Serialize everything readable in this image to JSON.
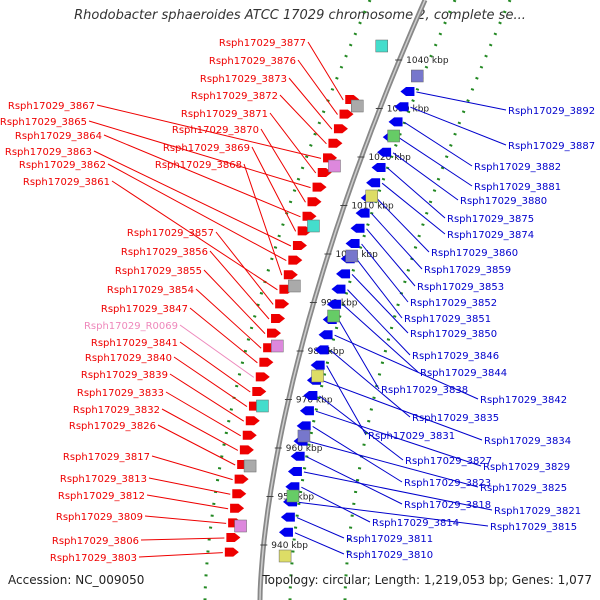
{
  "title": "Rhodobacter sphaeroides ATCC 17029 chromosome 2, complete se...",
  "footer": {
    "accession": "Accession: NC_009050",
    "summary": "Topology: circular; Length: 1,219,053 bp; Genes: 1,077"
  },
  "colors": {
    "left_label": "#ee0000",
    "right_label": "#0000cc",
    "rna_label": "#ee88bb",
    "forward_gene": "#ee0000",
    "reverse_gene": "#0000ee",
    "backbone": "#888888",
    "dots": "#228822"
  },
  "kbp_ticks": [
    "940 kbp",
    "950 kbp",
    "960 kbp",
    "970 kbp",
    "980 kbp",
    "990 kbp",
    "1000 kbp",
    "1010 kbp",
    "1020 kbp",
    "1030 kbp",
    "1040 kbp"
  ],
  "left_labels": [
    {
      "name": "Rsph17029_3877",
      "kind": "gene"
    },
    {
      "name": "Rsph17029_3876",
      "kind": "gene"
    },
    {
      "name": "Rsph17029_3873",
      "kind": "gene"
    },
    {
      "name": "Rsph17029_3872",
      "kind": "gene"
    },
    {
      "name": "Rsph17029_3867",
      "kind": "gene"
    },
    {
      "name": "Rsph17029_3871",
      "kind": "gene"
    },
    {
      "name": "Rsph17029_3865",
      "kind": "gene"
    },
    {
      "name": "Rsph17029_3870",
      "kind": "gene"
    },
    {
      "name": "Rsph17029_3864",
      "kind": "gene"
    },
    {
      "name": "Rsph17029_3869",
      "kind": "gene"
    },
    {
      "name": "Rsph17029_3863",
      "kind": "gene"
    },
    {
      "name": "Rsph17029_3862",
      "kind": "gene"
    },
    {
      "name": "Rsph17029_3868",
      "kind": "gene"
    },
    {
      "name": "Rsph17029_3861",
      "kind": "gene"
    },
    {
      "name": "Rsph17029_3857",
      "kind": "gene"
    },
    {
      "name": "Rsph17029_3856",
      "kind": "gene"
    },
    {
      "name": "Rsph17029_3855",
      "kind": "gene"
    },
    {
      "name": "Rsph17029_3854",
      "kind": "gene"
    },
    {
      "name": "Rsph17029_3847",
      "kind": "gene"
    },
    {
      "name": "Rsph17029_R0069",
      "kind": "rna"
    },
    {
      "name": "Rsph17029_3841",
      "kind": "gene"
    },
    {
      "name": "Rsph17029_3840",
      "kind": "gene"
    },
    {
      "name": "Rsph17029_3839",
      "kind": "gene"
    },
    {
      "name": "Rsph17029_3833",
      "kind": "gene"
    },
    {
      "name": "Rsph17029_3832",
      "kind": "gene"
    },
    {
      "name": "Rsph17029_3826",
      "kind": "gene"
    },
    {
      "name": "Rsph17029_3817",
      "kind": "gene"
    },
    {
      "name": "Rsph17029_3813",
      "kind": "gene"
    },
    {
      "name": "Rsph17029_3812",
      "kind": "gene"
    },
    {
      "name": "Rsph17029_3809",
      "kind": "gene"
    },
    {
      "name": "Rsph17029_3806",
      "kind": "gene"
    },
    {
      "name": "Rsph17029_3803",
      "kind": "gene"
    }
  ],
  "right_labels": [
    "Rsph17029_3892",
    "Rsph17029_3887",
    "Rsph17029_3882",
    "Rsph17029_3881",
    "Rsph17029_3880",
    "Rsph17029_3875",
    "Rsph17029_3874",
    "Rsph17029_3860",
    "Rsph17029_3859",
    "Rsph17029_3853",
    "Rsph17029_3852",
    "Rsph17029_3851",
    "Rsph17029_3850",
    "Rsph17029_3846",
    "Rsph17029_3844",
    "Rsph17029_3838",
    "Rsph17029_3842",
    "Rsph17029_3835",
    "Rsph17029_3831",
    "Rsph17029_3834",
    "Rsph17029_3827",
    "Rsph17029_3829",
    "Rsph17029_3823",
    "Rsph17029_3825",
    "Rsph17029_3818",
    "Rsph17029_3821",
    "Rsph17029_3814",
    "Rsph17029_3815",
    "Rsph17029_3811",
    "Rsph17029_3810"
  ]
}
